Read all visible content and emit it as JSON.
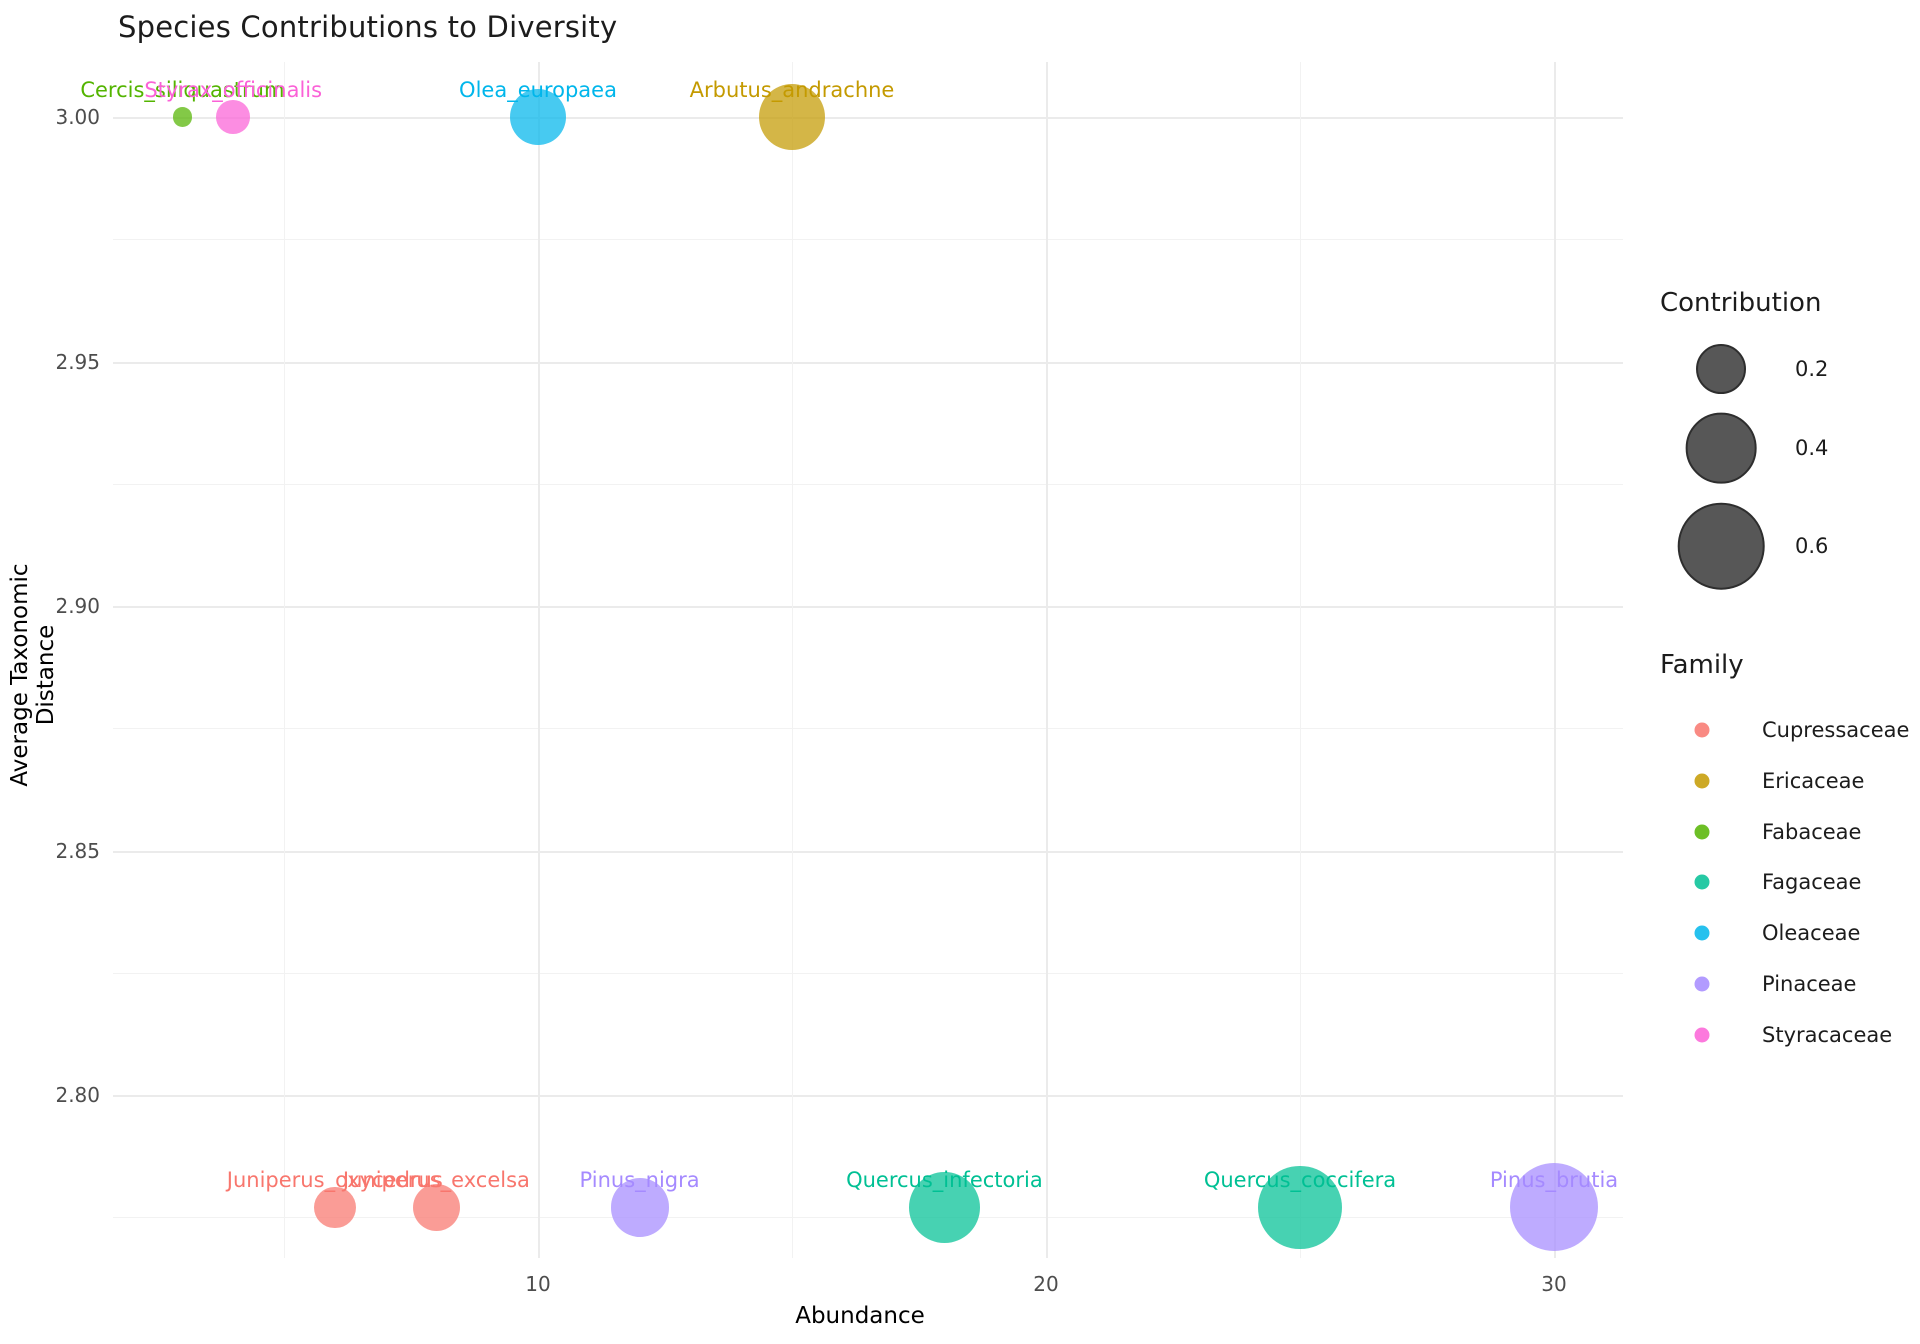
{
  "title": "Species Contributions to Diversity",
  "chart_data": {
    "type": "scatter",
    "title": "Species Contributions to Diversity",
    "xlabel": "Abundance",
    "ylabel": "Average Taxonomic Distance",
    "x_ticks": [
      10,
      20,
      30
    ],
    "x_minor_ticks": [
      5,
      15,
      25
    ],
    "y_ticks": [
      3.0,
      2.95,
      2.9,
      2.85,
      2.8
    ],
    "y_minor_ticks": [
      2.975,
      2.925,
      2.875,
      2.825,
      2.775
    ],
    "x_range": [
      1.6,
      31.4
    ],
    "y_range": [
      2.766,
      3.011
    ],
    "grid": true,
    "legend_position": "right",
    "points": [
      {
        "species": "Cercis_siliquastrum",
        "family": "Fabaceae",
        "abundance": 3,
        "avg_taxonomic_distance": 3.0,
        "contribution": 0.03
      },
      {
        "species": "Styrax_officinalis",
        "family": "Styracaceae",
        "abundance": 4,
        "avg_taxonomic_distance": 3.0,
        "contribution": 0.09
      },
      {
        "species": "Olea_europaea",
        "family": "Oleaceae",
        "abundance": 10,
        "avg_taxonomic_distance": 3.0,
        "contribution": 0.25
      },
      {
        "species": "Arbutus_andrachne",
        "family": "Ericaceae",
        "abundance": 15,
        "avg_taxonomic_distance": 3.0,
        "contribution": 0.35
      },
      {
        "species": "Juniperus_oxycedrus",
        "family": "Cupressaceae",
        "abundance": 6,
        "avg_taxonomic_distance": 2.777,
        "contribution": 0.14
      },
      {
        "species": "Juniperus_excelsa",
        "family": "Cupressaceae",
        "abundance": 8,
        "avg_taxonomic_distance": 2.777,
        "contribution": 0.18
      },
      {
        "species": "Pinus_nigra",
        "family": "Pinaceae",
        "abundance": 12,
        "avg_taxonomic_distance": 2.777,
        "contribution": 0.27
      },
      {
        "species": "Quercus_infectoria",
        "family": "Fagaceae",
        "abundance": 18,
        "avg_taxonomic_distance": 2.777,
        "contribution": 0.4
      },
      {
        "species": "Quercus_coccifera",
        "family": "Fagaceae",
        "abundance": 25,
        "avg_taxonomic_distance": 2.777,
        "contribution": 0.56
      },
      {
        "species": "Pinus_brutia",
        "family": "Pinaceae",
        "abundance": 30,
        "avg_taxonomic_distance": 2.777,
        "contribution": 0.62
      }
    ]
  },
  "family_colors": {
    "Cupressaceae": "#F8766D",
    "Ericaceae": "#C49A00",
    "Fabaceae": "#53B400",
    "Fagaceae": "#00C094",
    "Oleaceae": "#00B6EB",
    "Pinaceae": "#A58AFF",
    "Styracaceae": "#FB61D7"
  },
  "legend_size": {
    "title": "Contribution",
    "values": [
      0.2,
      0.4,
      0.6
    ],
    "circle_color": "#575757"
  },
  "legend_family": {
    "title": "Family",
    "entries": [
      "Cupressaceae",
      "Ericaceae",
      "Fabaceae",
      "Fagaceae",
      "Oleaceae",
      "Pinaceae",
      "Styracaceae"
    ]
  }
}
